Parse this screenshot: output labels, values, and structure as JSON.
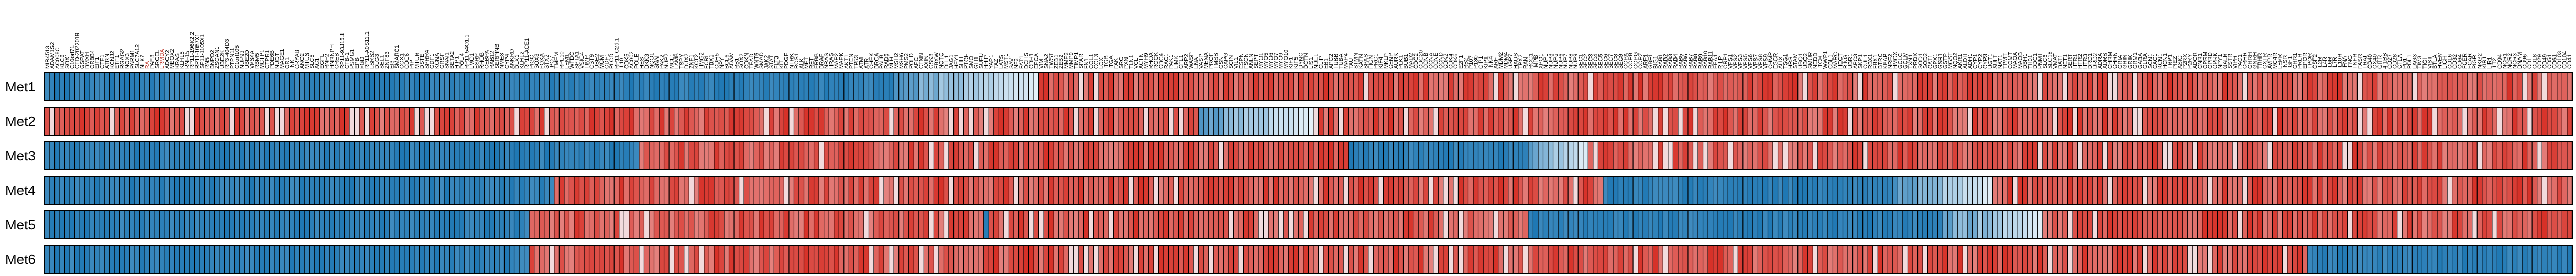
{
  "chart_data": {
    "type": "heatmap",
    "title": "",
    "xlabel": "",
    "ylabel": "",
    "rows": [
      "Met1",
      "Met2",
      "Met3",
      "Met4",
      "Met5",
      "Met6"
    ],
    "column_labels": [
      "MIR4513",
      "ADAM1S2",
      "AC008C",
      "KLC6",
      "SOX1",
      "C10orf71",
      "CTD-2022019",
      "GSPAT",
      "DMXH",
      "OR8B4",
      "EIF1",
      "CTF1",
      "ATRN",
      "KCNJ2",
      "ETF1",
      "RGAG2",
      "NOX3",
      "PARM1",
      "SLC7A12",
      "NLX2",
      "RA",
      "PAE3",
      "SRCEL",
      "LRMDA",
      "ADCY2",
      "MEOX2",
      "KRAS",
      "KLHL5",
      "RNF15",
      "RP11-196K2.2",
      "RP11-1057X1",
      "SP11-1105X1",
      "RN5",
      "BNPD2",
      "ZSCAN1",
      "UBE2K",
      "RP3-404D3",
      "PTPN11",
      "C1orf105",
      "NUP93",
      "UBE2D",
      "VPS4A",
      "RBM5",
      "MCTP1",
      "CTPR1",
      "PDE6B",
      "NUDT",
      "MAGE1",
      "OR1",
      "INK",
      "CRYAB",
      "ANO2",
      "MTUS",
      "SLC5",
      "AC1",
      "EGFL",
      "RNF2",
      "HNRNPH",
      "CREB",
      "RP11-93J15.1",
      "CTB-1",
      "PSMG1",
      "EPB",
      "FGD",
      "RP11-A0S11.1",
      "LSRS2",
      "DLG3",
      "SEL1",
      "ZNF83",
      "EI3",
      "SMARC1",
      "COX1",
      "CDC6",
      "PIP",
      "MTUR",
      "DSTE",
      "SPRR4",
      "GDF1",
      "KCNA",
      "GRSF",
      "SNAI1",
      "BETA2",
      "HIP1",
      "POU4",
      "RP11-54O1.1",
      "LMO1",
      "ESRP",
      "RHOB",
      "CEBPA",
      "RAB12",
      "SERPINB",
      "NME3",
      "CYP4",
      "ANKRD",
      "DLX1",
      "KLHL2",
      "RP11-ACE1",
      "PIGC",
      "SOX8",
      "FOXA",
      "STX2",
      "IPO7",
      "TMEM",
      "RPL10",
      "LEM1",
      "WFDC",
      "SPTA1",
      "VSIG4",
      "TIMP",
      "CST9",
      "UBE2",
      "MCM",
      "ODF1",
      "PLCD",
      "RP11-C2d.1",
      "IL10",
      "CDK5",
      "AC002",
      "POLE",
      "HES",
      "DKK3",
      "NQO1",
      "SNAI",
      "PAK2",
      "NUP2",
      "MCL1",
      "LAMB",
      "TSPY",
      "DUX2",
      "ZNF1",
      "KCT2",
      "HMG2",
      "FCRL",
      "TBX1",
      "CDH5",
      "NPY",
      "BCL6",
      "ADAM",
      "RB1",
      "SOX2",
      "CDKN",
      "TEAD",
      "WNT5",
      "SMAD",
      "JAK2",
      "STAT",
      "FLT3",
      "KIT",
      "PDGF",
      "NTRK",
      "ROS1",
      "ALK",
      "MET",
      "RET",
      "ERBB",
      "BRAF",
      "NRAS",
      "HRAS",
      "MAP2",
      "MAPK",
      "AKT1",
      "PTEN",
      "TP53",
      "ATM",
      "ATR",
      "CHEK",
      "BRCA",
      "PALB",
      "RAD5",
      "MLH1",
      "MSH2",
      "MSH6",
      "PMS2",
      "POLD",
      "APC",
      "CTNN",
      "AXIN",
      "GSK3",
      "FBXW",
      "NOTC",
      "DLL1",
      "JAG1",
      "HEY1",
      "SHH",
      "PTCH",
      "SMO",
      "GLI1",
      "SUFU",
      "HHIP",
      "YAP1",
      "TAZ",
      "LATS",
      "MST1",
      "SAV1",
      "NF2",
      "FAT1",
      "DCHS",
      "CDH1",
      "EPCA",
      "VIM",
      "SNA2",
      "TWST",
      "ZEB1",
      "ZEB2",
      "MMP2",
      "MMP9",
      "TIMP1",
      "SPAR",
      "FN1",
      "COL1",
      "COL3",
      "LOX",
      "ITGB",
      "ITGA",
      "FAK",
      "SRC",
      "PXN",
      "TLN1",
      "VCL",
      "ACTN",
      "MYH9",
      "RHOA",
      "ROCK",
      "CDC4",
      "RAC1",
      "PAK1",
      "LIMK",
      "CFL1",
      "ARP2",
      "WASP",
      "ENA",
      "VASP",
      "MENA",
      "PROF",
      "TMSB",
      "GSN",
      "CAPG",
      "SCIN",
      "VIL1",
      "ESPN",
      "FSCN",
      "ANLN",
      "SEPT",
      "MYO1",
      "MYO5",
      "MYO6",
      "MYO7",
      "MYO9",
      "MYO10",
      "KIF1",
      "KIF5",
      "DYNC",
      "DCTN",
      "LIS1",
      "NDEL",
      "CLIP",
      "EB1",
      "APC2",
      "TUBB",
      "TUBA",
      "MAP4",
      "TAU",
      "STMN",
      "KATN",
      "SPAS",
      "FIGN",
      "PRC1",
      "KIF4",
      "MKLP",
      "CENP",
      "AURK",
      "PLK1",
      "BUB1",
      "MAD2",
      "CDC2",
      "CDC20",
      "CCNB",
      "CCNA",
      "CCNE",
      "CCND",
      "CDK2",
      "CDK4",
      "CDK6",
      "E2F1",
      "RB2",
      "P107",
      "P130",
      "CIP1",
      "KIP1",
      "INK4",
      "ARF",
      "MDM2",
      "MDM4",
      "USP7",
      "HAUS",
      "TPX2",
      "RAN",
      "RCC1",
      "IMPB",
      "XPO1",
      "NUP1",
      "NUP3",
      "NUP5",
      "NUP6",
      "NUP7",
      "NUP8",
      "NUP9",
      "SEC1",
      "SEC2",
      "SEC3",
      "SEC4",
      "SEC5",
      "SEC6",
      "SEC7",
      "SEC8",
      "SEC9",
      "COPA",
      "COPB",
      "COPG",
      "COPZ",
      "ARF1",
      "GBF1",
      "BIG1",
      "RAB1",
      "RAB2",
      "RAB3",
      "RAB4",
      "RAB5",
      "RAB6",
      "RAB7",
      "RAB8",
      "RAB9",
      "RAB10",
      "RAB11",
      "EEA1",
      "RILP",
      "ORP1",
      "VPS1",
      "VPS2",
      "VPS3",
      "VPS5",
      "VPS6",
      "VPS7",
      "VPS8",
      "VPS9",
      "CHMP",
      "ESCR",
      "ALIX",
      "TSG1",
      "HRS",
      "STAM",
      "UBQ1",
      "UBQ2",
      "SMUR",
      "NEDD",
      "ITCH",
      "WWP1",
      "CBL1",
      "MARC",
      "HECT",
      "RING",
      "UBR1",
      "APC3",
      "SKP1",
      "CUL1",
      "RBX1",
      "FBX1",
      "BTRC",
      "KEAP",
      "NRF2",
      "HMOX",
      "GCLC",
      "GCLM",
      "TXN1",
      "PRDX",
      "SOD1",
      "SOD2",
      "CAT1",
      "GPX1",
      "GSR1",
      "GSTP",
      "MGST",
      "NQO2",
      "AKR1",
      "ALDH",
      "ADH1",
      "CYP1",
      "CYP2",
      "CYP3",
      "UGT1",
      "SULT",
      "NAT1",
      "TPMT",
      "COMT",
      "MAOA",
      "MAOB",
      "DBH1",
      "TH01",
      "DDC1",
      "PNMT",
      "SLC6",
      "SLC18",
      "VMAT",
      "DAT1",
      "NET1",
      "SERT",
      "HTR1",
      "HTR2",
      "HTR3",
      "DRD1",
      "DRD2",
      "ADRA",
      "ADRB",
      "CHRM",
      "CHRN",
      "GRIA",
      "GRIN",
      "GRIK",
      "GRM1",
      "GABA",
      "GLRA",
      "SCN1",
      "CAC1",
      "KCN1",
      "HCN1",
      "TRP1",
      "PIEZ",
      "ASIC",
      "P2RX",
      "P2RY",
      "ADOR",
      "CNR1",
      "OPRM",
      "OPRD",
      "OPRK",
      "NPY1",
      "GALR",
      "SSTR",
      "VIPR",
      "PAC1",
      "CRHR",
      "GHRH",
      "GNRH",
      "TRHR",
      "OXTR",
      "AVPR",
      "MC4R",
      "LEPR",
      "INSR",
      "IGF1",
      "GHR1",
      "PRLR",
      "EPOR",
      "TPOR",
      "CSF2",
      "IL2R",
      "IL4R",
      "IL6R",
      "IL7R",
      "IL10R",
      "IFNA",
      "IFNG",
      "TNFR",
      "FASR",
      "TRAI",
      "CD40",
      "OX40",
      "GITR",
      "4-1BB",
      "CD27",
      "CD28",
      "CTLA",
      "PD1",
      "PDL1",
      "LAG3",
      "TIM3",
      "TIGI",
      "VIST",
      "BTLA",
      "HVEM",
      "LIGH",
      "CD16",
      "CD32",
      "CD64",
      "FCER",
      "FCAR",
      "PIGR",
      "NKG2",
      "KIR1",
      "LIR1",
      "ILT2",
      "CD94",
      "NCR1",
      "NCR2",
      "NCR3",
      "DNAM",
      "CD96",
      "CD11",
      "CD18",
      "CD29",
      "CD49",
      "CD51",
      "CD61",
      "CD103",
      "CD104",
      "CD41"
    ],
    "highlight_columns": [
      20,
      23
    ],
    "value_range": [
      -1,
      1
    ],
    "color_scale": {
      "low": "#1f78b4",
      "mid": "#f7fbff",
      "high": "#d73027"
    },
    "legend": "none",
    "grid": false
  }
}
